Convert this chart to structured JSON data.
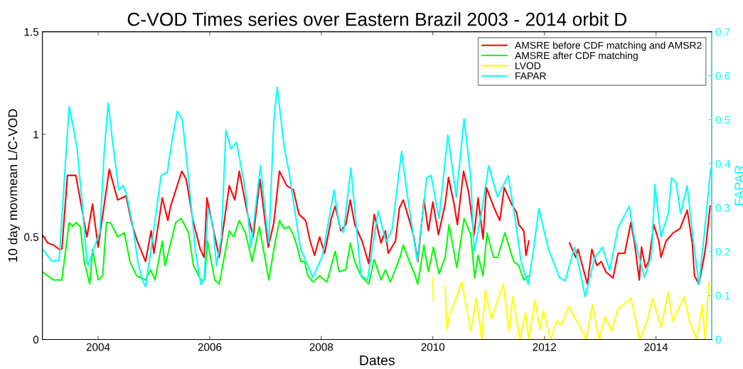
{
  "chart_data": {
    "type": "line",
    "title": "C-VOD Times series over Eastern Brazil 2003 - 2014 orbit D",
    "xlabel": "Dates",
    "ylabel": "10 day movmean L/C-VOD",
    "y2label": "FAPAR",
    "xlim": [
      2003,
      2015
    ],
    "xticks": [
      2004,
      2006,
      2008,
      2010,
      2012,
      2014
    ],
    "ylim": [
      0,
      1.5
    ],
    "yticks": [
      0,
      0.5,
      1,
      1.5
    ],
    "y2lim": [
      0,
      0.7
    ],
    "y2ticks": [
      0,
      0.1,
      0.2,
      0.3,
      0.4,
      0.5,
      0.6,
      0.7
    ],
    "legend": "top right",
    "grid": false,
    "line_style": "solid",
    "marker": "none",
    "series": [
      {
        "name": "AMSRE before CDF matching and AMSR2",
        "color": "#ff0000",
        "x": [
          2003.0,
          2003.1,
          2003.2,
          2003.3,
          2003.35,
          2003.45,
          2003.6,
          2003.8,
          2003.9,
          2004.0,
          2004.2,
          2004.35,
          2004.5,
          2004.6,
          2004.7,
          2004.85,
          2004.95,
          2005.0,
          2005.15,
          2005.25,
          2005.3,
          2005.5,
          2005.58,
          2005.7,
          2005.83,
          2005.9,
          2005.95,
          2006.17,
          2006.35,
          2006.45,
          2006.53,
          2006.68,
          2006.78,
          2006.9,
          2007.05,
          2007.15,
          2007.25,
          2007.38,
          2007.5,
          2007.6,
          2007.72,
          2007.8,
          2007.88,
          2007.97,
          2008.06,
          2008.18,
          2008.25,
          2008.35,
          2008.44,
          2008.52,
          2008.6,
          2008.73,
          2008.85,
          2008.95,
          2009.07,
          2009.15,
          2009.2,
          2009.33,
          2009.4,
          2009.47,
          2009.58,
          2009.66,
          2009.73,
          2009.84,
          2009.92,
          2010.0,
          2010.1,
          2010.22,
          2010.28,
          2010.38,
          2010.44,
          2010.55,
          2010.64,
          2010.74,
          2010.81,
          2010.9,
          2010.96,
          2011.1,
          2011.2,
          2011.28,
          2011.41,
          2011.5,
          2011.54,
          2011.63,
          2011.67,
          2011.72,
          2012.0,
          2012.45,
          2012.56,
          2012.6,
          2012.71,
          2012.77,
          2012.85,
          2012.94,
          2013.02,
          2013.1,
          2013.23,
          2013.32,
          2013.44,
          2013.55,
          2013.61,
          2013.7,
          2013.74,
          2013.81,
          2013.87,
          2013.96,
          2014.05,
          2014.09,
          2014.18,
          2014.31,
          2014.43,
          2014.56,
          2014.65,
          2014.69,
          2014.77,
          2014.86,
          2014.9,
          2014.97
        ],
        "values": [
          0.51,
          0.47,
          0.46,
          0.44,
          0.44,
          0.8,
          0.8,
          0.5,
          0.66,
          0.45,
          0.83,
          0.68,
          0.7,
          0.57,
          0.48,
          0.38,
          0.53,
          0.42,
          0.69,
          0.58,
          0.65,
          0.82,
          0.78,
          0.58,
          0.44,
          0.4,
          0.69,
          0.4,
          0.75,
          0.68,
          0.82,
          0.61,
          0.5,
          0.78,
          0.45,
          0.57,
          0.82,
          0.75,
          0.73,
          0.61,
          0.58,
          0.48,
          0.41,
          0.5,
          0.42,
          0.59,
          0.65,
          0.53,
          0.56,
          0.68,
          0.56,
          0.48,
          0.37,
          0.61,
          0.47,
          0.53,
          0.42,
          0.48,
          0.64,
          0.68,
          0.58,
          0.5,
          0.38,
          0.68,
          0.53,
          0.67,
          0.51,
          0.66,
          0.79,
          0.66,
          0.56,
          0.82,
          0.72,
          0.51,
          0.69,
          0.49,
          0.74,
          0.64,
          0.58,
          0.74,
          0.66,
          0.62,
          0.56,
          0.53,
          0.41,
          0.48,
          null,
          0.47,
          0.4,
          0.44,
          0.33,
          0.27,
          0.44,
          0.36,
          0.38,
          0.33,
          0.3,
          0.42,
          0.42,
          0.57,
          0.48,
          0.29,
          0.45,
          0.35,
          0.38,
          0.56,
          0.48,
          0.4,
          0.48,
          0.52,
          0.54,
          0.63,
          0.47,
          0.31,
          0.27,
          0.4,
          0.47,
          0.65
        ]
      },
      {
        "name": "AMSRE after CDF matching",
        "color": "#00ff00",
        "x": [
          2003.0,
          2003.2,
          2003.35,
          2003.48,
          2003.54,
          2003.6,
          2003.68,
          2003.75,
          2003.85,
          2003.9,
          2004.0,
          2004.08,
          2004.15,
          2004.22,
          2004.35,
          2004.47,
          2004.57,
          2004.69,
          2004.85,
          2004.94,
          2005.02,
          2005.15,
          2005.2,
          2005.39,
          2005.49,
          2005.62,
          2005.71,
          2005.84,
          2005.91,
          2005.96,
          2006.09,
          2006.17,
          2006.35,
          2006.43,
          2006.53,
          2006.64,
          2006.76,
          2006.89,
          2007.06,
          2007.15,
          2007.25,
          2007.34,
          2007.42,
          2007.5,
          2007.57,
          2007.63,
          2007.7,
          2007.76,
          2007.85,
          2007.97,
          2008.1,
          2008.25,
          2008.32,
          2008.44,
          2008.52,
          2008.6,
          2008.71,
          2008.85,
          2008.95,
          2009.07,
          2009.15,
          2009.24,
          2009.41,
          2009.47,
          2009.58,
          2009.67,
          2009.73,
          2009.84,
          2009.92,
          2010.01,
          2010.11,
          2010.22,
          2010.29,
          2010.43,
          2010.56,
          2010.68,
          2010.75,
          2010.81,
          2010.9,
          2010.97,
          2011.09,
          2011.16,
          2011.29,
          2011.37,
          2011.45,
          2011.54,
          2011.63,
          2011.71
        ],
        "values": [
          0.33,
          0.29,
          0.29,
          0.57,
          0.55,
          0.57,
          0.55,
          0.38,
          0.27,
          0.44,
          0.29,
          0.31,
          0.57,
          0.57,
          0.5,
          0.52,
          0.38,
          0.31,
          0.29,
          0.34,
          0.29,
          0.48,
          0.36,
          0.57,
          0.59,
          0.52,
          0.36,
          0.29,
          0.29,
          0.48,
          0.29,
          0.27,
          0.53,
          0.5,
          0.58,
          0.52,
          0.38,
          0.55,
          0.29,
          0.44,
          0.58,
          0.54,
          0.55,
          0.51,
          0.45,
          0.38,
          0.38,
          0.31,
          0.28,
          0.31,
          0.28,
          0.43,
          0.33,
          0.34,
          0.47,
          0.38,
          0.31,
          0.27,
          0.39,
          0.29,
          0.34,
          0.28,
          0.4,
          0.46,
          0.38,
          0.32,
          0.27,
          0.46,
          0.33,
          0.45,
          0.32,
          0.4,
          0.56,
          0.35,
          0.59,
          0.51,
          0.3,
          0.41,
          0.31,
          0.52,
          0.4,
          0.4,
          0.52,
          0.45,
          0.38,
          0.36,
          0.29,
          0.31
        ]
      },
      {
        "name": "LVOD",
        "color": "#ffff00",
        "x": [
          2010.0,
          2010.01,
          2010.1,
          2010.22,
          2010.25,
          2010.3,
          2010.43,
          2010.52,
          2010.68,
          2010.78,
          2010.88,
          2010.94,
          2011.05,
          2011.16,
          2011.26,
          2011.37,
          2011.43,
          2011.56,
          2011.66,
          2011.72,
          2011.83,
          2011.92,
          2011.98,
          2012.11,
          2012.22,
          2012.3,
          2012.43,
          2012.56,
          2012.75,
          2012.86,
          2012.98,
          2013.09,
          2013.2,
          2013.32,
          2013.55,
          2013.71,
          2013.84,
          2013.94,
          2014.09,
          2014.22,
          2014.3,
          2014.51,
          2014.6,
          2014.73,
          2014.83,
          2014.88,
          2014.95
        ],
        "values": [
          0.3,
          0.19,
          null,
          0.26,
          0.05,
          0.12,
          0.21,
          0.28,
          0.04,
          0.2,
          0.0,
          0.24,
          0.1,
          0.19,
          0.27,
          0.04,
          0.21,
          0.0,
          0.13,
          0.0,
          0.19,
          0.05,
          0.14,
          0.0,
          0.09,
          0.07,
          0.16,
          0.1,
          0.0,
          0.17,
          0.0,
          0.11,
          0.04,
          0.15,
          0.2,
          0.0,
          0.09,
          0.2,
          0.06,
          0.23,
          0.09,
          0.21,
          0.09,
          0.0,
          0.17,
          0.0,
          0.28
        ]
      },
      {
        "name": "FAPAR",
        "color": "#00ffff",
        "axis": "y2",
        "x": [
          2003.0,
          2003.17,
          2003.3,
          2003.48,
          2003.55,
          2003.62,
          2003.7,
          2003.8,
          2003.82,
          2003.93,
          2004.03,
          2004.11,
          2004.18,
          2004.26,
          2004.37,
          2004.45,
          2004.51,
          2004.62,
          2004.71,
          2004.79,
          2004.85,
          2004.95,
          2005.13,
          2005.24,
          2005.32,
          2005.42,
          2005.51,
          2005.62,
          2005.74,
          2005.84,
          2005.9,
          2005.97,
          2006.06,
          2006.12,
          2006.21,
          2006.29,
          2006.38,
          2006.48,
          2006.64,
          2006.74,
          2006.91,
          2007.02,
          2007.06,
          2007.15,
          2007.21,
          2007.34,
          2007.42,
          2007.5,
          2007.63,
          2007.76,
          2007.85,
          2008.02,
          2008.23,
          2008.32,
          2008.4,
          2008.53,
          2008.71,
          2008.83,
          2009.02,
          2009.16,
          2009.27,
          2009.44,
          2009.54,
          2009.72,
          2009.89,
          2009.97,
          2010.11,
          2010.27,
          2010.42,
          2010.56,
          2010.68,
          2010.74,
          2010.87,
          2011.0,
          2011.16,
          2011.35,
          2011.46,
          2011.58,
          2011.71,
          2011.8,
          2011.9,
          2012.07,
          2012.27,
          2012.37,
          2012.54,
          2012.6,
          2012.73,
          2012.9,
          2013.04,
          2013.17,
          2013.32,
          2013.52,
          2013.61,
          2013.79,
          2013.92,
          2013.98,
          2014.09,
          2014.22,
          2014.28,
          2014.36,
          2014.44,
          2014.56,
          2014.66,
          2014.77,
          2014.86,
          2014.98
        ],
        "values": [
          0.206,
          0.178,
          0.18,
          0.53,
          0.486,
          0.437,
          0.33,
          0.178,
          0.168,
          0.21,
          0.243,
          0.428,
          0.538,
          0.449,
          0.34,
          0.35,
          0.33,
          0.26,
          0.178,
          0.136,
          0.12,
          0.206,
          0.373,
          0.38,
          0.449,
          0.519,
          0.5,
          0.368,
          0.206,
          0.125,
          0.136,
          0.298,
          0.26,
          0.168,
          0.233,
          0.476,
          0.433,
          0.449,
          0.34,
          0.21,
          0.395,
          0.26,
          0.22,
          0.5,
          0.574,
          0.433,
          0.384,
          0.314,
          0.206,
          0.168,
          0.141,
          0.19,
          0.34,
          0.26,
          0.243,
          0.39,
          0.146,
          0.136,
          0.292,
          0.222,
          0.25,
          0.428,
          0.33,
          0.178,
          0.368,
          0.373,
          0.275,
          0.465,
          0.324,
          0.502,
          0.368,
          0.2,
          0.287,
          0.395,
          0.324,
          0.373,
          0.287,
          0.178,
          0.125,
          0.2,
          0.298,
          0.206,
          0.141,
          0.133,
          0.21,
          0.178,
          0.097,
          0.185,
          0.21,
          0.157,
          0.254,
          0.303,
          0.233,
          0.141,
          0.19,
          0.352,
          0.233,
          0.287,
          0.368,
          0.357,
          0.287,
          0.349,
          0.233,
          0.125,
          0.233,
          0.388
        ]
      }
    ]
  }
}
